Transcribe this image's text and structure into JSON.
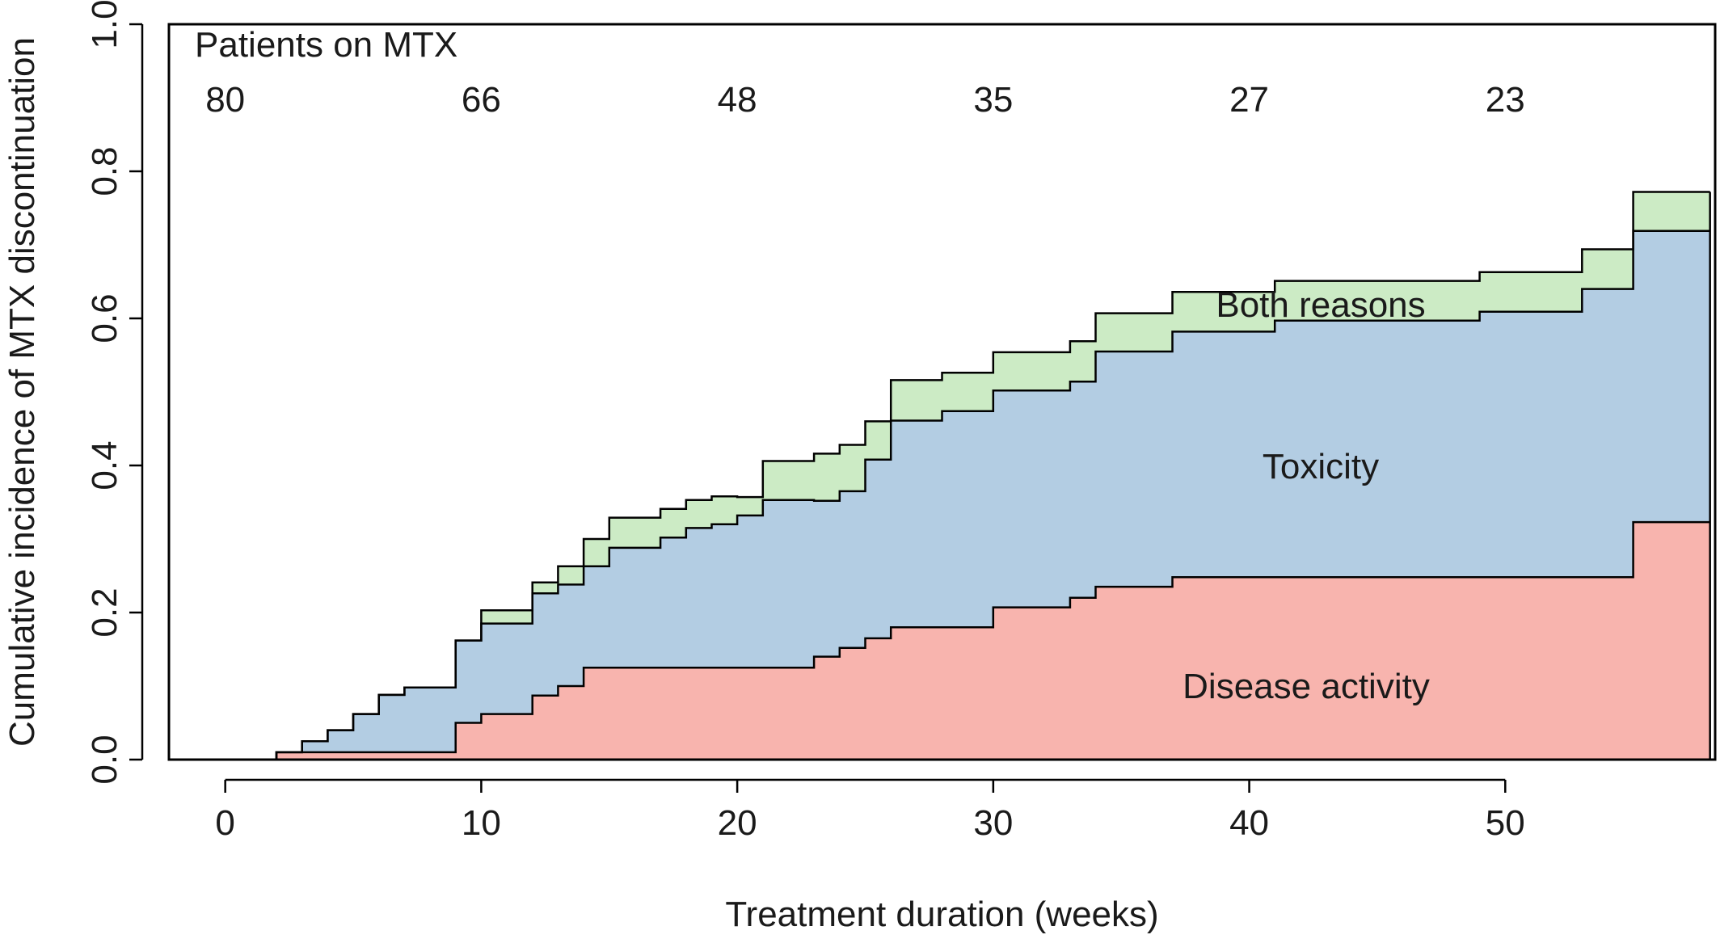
{
  "chart_data": {
    "type": "area",
    "title": "",
    "xlabel": "Treatment duration (weeks)",
    "ylabel": "Cumulative incidence of MTX discontinuation",
    "xlim": [
      -2.2,
      58.2
    ],
    "ylim": [
      0,
      1
    ],
    "x_ticks": [
      0,
      10,
      20,
      30,
      40,
      50
    ],
    "y_ticks": [
      0.0,
      0.2,
      0.4,
      0.6,
      0.8,
      1.0
    ],
    "x_tick_labels": [
      "0",
      "10",
      "20",
      "30",
      "40",
      "50"
    ],
    "y_tick_labels": [
      "0.0",
      "0.2",
      "0.4",
      "0.6",
      "0.8",
      "1.0"
    ],
    "grid": false,
    "legend": "none",
    "risk_table": {
      "label": "Patients on MTX",
      "times": [
        0,
        10,
        20,
        30,
        40,
        50
      ],
      "counts": [
        "80",
        "66",
        "48",
        "35",
        "27",
        "23"
      ]
    },
    "step_x": [
      0,
      2,
      3,
      4,
      5,
      6,
      7,
      9,
      10,
      12,
      13,
      14,
      15,
      17,
      18,
      19,
      20,
      21,
      23,
      24,
      25,
      26,
      28,
      30,
      33,
      34,
      37,
      41,
      49,
      53,
      55,
      58
    ],
    "series": [
      {
        "name": "Disease activity",
        "color": "#f8b4ae",
        "values": [
          0.0,
          0.01,
          0.01,
          0.01,
          0.01,
          0.01,
          0.01,
          0.05,
          0.062,
          0.087,
          0.1,
          0.125,
          0.125,
          0.125,
          0.125,
          0.125,
          0.125,
          0.125,
          0.14,
          0.152,
          0.165,
          0.18,
          0.18,
          0.207,
          0.22,
          0.235,
          0.248,
          0.248,
          0.248,
          0.248,
          0.323,
          0.323
        ]
      },
      {
        "name": "Toxicity",
        "color": "#b3cde3",
        "values": [
          0.0,
          0.0,
          0.015,
          0.03,
          0.052,
          0.078,
          0.088,
          0.112,
          0.123,
          0.139,
          0.138,
          0.138,
          0.163,
          0.177,
          0.19,
          0.195,
          0.207,
          0.228,
          0.212,
          0.213,
          0.243,
          0.281,
          0.294,
          0.295,
          0.294,
          0.32,
          0.334,
          0.349,
          0.361,
          0.392,
          0.396,
          0.396
        ]
      },
      {
        "name": "Both reasons",
        "color": "#ccebc5",
        "values": [
          0.0,
          0.0,
          0.0,
          0.0,
          0.0,
          0.0,
          0.0,
          0.0,
          0.018,
          0.015,
          0.025,
          0.037,
          0.041,
          0.039,
          0.038,
          0.038,
          0.025,
          0.053,
          0.064,
          0.063,
          0.052,
          0.055,
          0.052,
          0.052,
          0.055,
          0.052,
          0.054,
          0.054,
          0.054,
          0.054,
          0.053,
          0.053
        ]
      }
    ],
    "region_labels": [
      "Both reasons",
      "Toxicity",
      "Disease activity"
    ]
  }
}
